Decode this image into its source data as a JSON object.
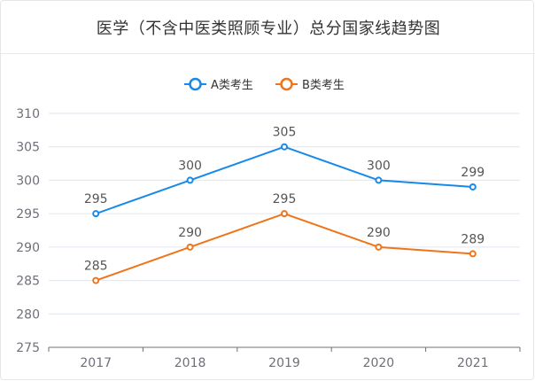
{
  "chart_data": {
    "type": "line",
    "title": "医学（不含中医类照顾专业）总分国家线趋势图",
    "categories": [
      "2017",
      "2018",
      "2019",
      "2020",
      "2021"
    ],
    "yticks": [
      "310",
      "305",
      "300",
      "295",
      "290",
      "285",
      "280",
      "275"
    ],
    "ylim": [
      275,
      310
    ],
    "ystep": 5,
    "grid": true,
    "legend_position": "top-center",
    "series": [
      {
        "name": "A类考生",
        "color": "#1789e8",
        "values": [
          295,
          300,
          305,
          300,
          299
        ]
      },
      {
        "name": "B类考生",
        "color": "#f07419",
        "values": [
          285,
          290,
          295,
          290,
          289
        ]
      }
    ]
  }
}
